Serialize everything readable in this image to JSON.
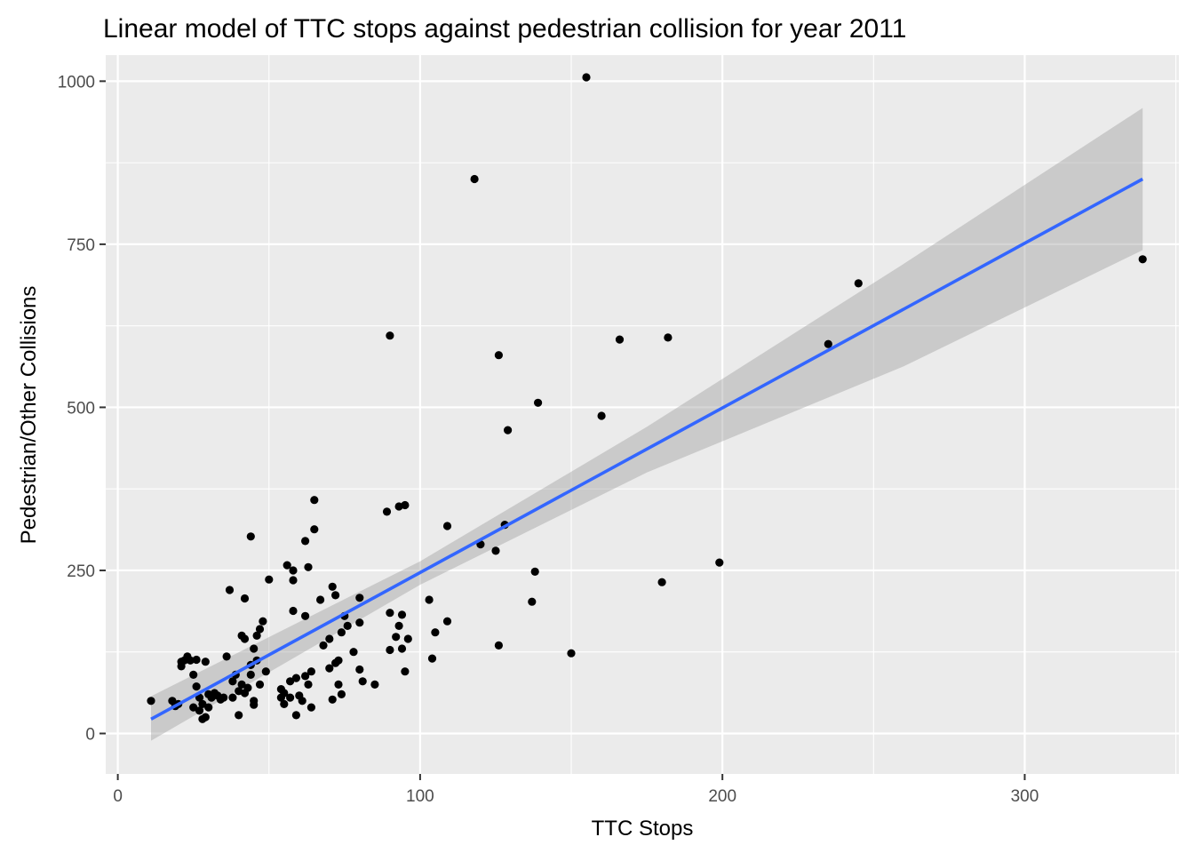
{
  "chart_data": {
    "type": "scatter",
    "title": "Linear model of TTC stops against pedestrian collision for year 2011",
    "xlabel": "TTC Stops",
    "ylabel": "Pedestrian/Other Collisions",
    "xlim": [
      -4,
      351
    ],
    "ylim": [
      -62,
      1040
    ],
    "x_ticks": [
      0,
      100,
      200,
      300
    ],
    "x_tick_labels": [
      "0",
      "100",
      "200",
      "300"
    ],
    "y_ticks": [
      0,
      250,
      500,
      750,
      1000
    ],
    "y_tick_labels": [
      "0",
      "250",
      "500",
      "750",
      "1000"
    ],
    "grid": true,
    "legend": "none",
    "colors": {
      "panel": "#ebebeb",
      "grid": "#ffffff",
      "point": "#000000",
      "fit_line": "#3366ff",
      "ribbon": "#bdbdbd"
    },
    "fit": {
      "method": "lm",
      "x": [
        11,
        339
      ],
      "y": [
        22,
        850
      ],
      "ribbon_lower": [
        [
          11,
          -11
        ],
        [
          100,
          228
        ],
        [
          175,
          400
        ],
        [
          260,
          563
        ],
        [
          339,
          741
        ]
      ],
      "ribbon_upper": [
        [
          11,
          57
        ],
        [
          100,
          264
        ],
        [
          175,
          470
        ],
        [
          260,
          720
        ],
        [
          339,
          959
        ]
      ]
    },
    "points": [
      [
        11,
        50
      ],
      [
        18,
        50
      ],
      [
        19,
        42
      ],
      [
        20,
        45
      ],
      [
        21,
        110
      ],
      [
        21,
        103
      ],
      [
        22,
        112
      ],
      [
        23,
        118
      ],
      [
        24,
        112
      ],
      [
        25,
        90
      ],
      [
        25,
        40
      ],
      [
        26,
        113
      ],
      [
        26,
        72
      ],
      [
        27,
        35
      ],
      [
        27,
        55
      ],
      [
        28,
        22
      ],
      [
        28,
        45
      ],
      [
        29,
        25
      ],
      [
        29,
        110
      ],
      [
        30,
        60
      ],
      [
        30,
        40
      ],
      [
        31,
        55
      ],
      [
        32,
        62
      ],
      [
        33,
        58
      ],
      [
        34,
        52
      ],
      [
        35,
        55
      ],
      [
        36,
        118
      ],
      [
        37,
        220
      ],
      [
        38,
        55
      ],
      [
        38,
        80
      ],
      [
        39,
        90
      ],
      [
        40,
        28
      ],
      [
        40,
        65
      ],
      [
        41,
        150
      ],
      [
        41,
        75
      ],
      [
        42,
        145
      ],
      [
        42,
        62
      ],
      [
        42,
        207
      ],
      [
        43,
        70
      ],
      [
        44,
        105
      ],
      [
        44,
        302
      ],
      [
        44,
        90
      ],
      [
        45,
        130
      ],
      [
        45,
        50
      ],
      [
        45,
        44
      ],
      [
        46,
        150
      ],
      [
        46,
        112
      ],
      [
        47,
        75
      ],
      [
        47,
        160
      ],
      [
        48,
        172
      ],
      [
        49,
        95
      ],
      [
        50,
        236
      ],
      [
        54,
        68
      ],
      [
        54,
        55
      ],
      [
        55,
        45
      ],
      [
        55,
        62
      ],
      [
        56,
        258
      ],
      [
        57,
        80
      ],
      [
        57,
        55
      ],
      [
        58,
        235
      ],
      [
        58,
        250
      ],
      [
        58,
        188
      ],
      [
        59,
        28
      ],
      [
        59,
        85
      ],
      [
        60,
        58
      ],
      [
        61,
        50
      ],
      [
        62,
        295
      ],
      [
        62,
        180
      ],
      [
        62,
        88
      ],
      [
        63,
        255
      ],
      [
        63,
        75
      ],
      [
        64,
        95
      ],
      [
        64,
        40
      ],
      [
        65,
        313
      ],
      [
        65,
        358
      ],
      [
        67,
        205
      ],
      [
        68,
        135
      ],
      [
        70,
        145
      ],
      [
        70,
        100
      ],
      [
        71,
        225
      ],
      [
        71,
        52
      ],
      [
        72,
        212
      ],
      [
        72,
        108
      ],
      [
        73,
        112
      ],
      [
        73,
        75
      ],
      [
        74,
        155
      ],
      [
        74,
        60
      ],
      [
        75,
        180
      ],
      [
        76,
        165
      ],
      [
        78,
        125
      ],
      [
        80,
        208
      ],
      [
        80,
        170
      ],
      [
        80,
        98
      ],
      [
        81,
        80
      ],
      [
        85,
        75
      ],
      [
        89,
        340
      ],
      [
        90,
        185
      ],
      [
        90,
        128
      ],
      [
        90,
        610
      ],
      [
        92,
        148
      ],
      [
        93,
        348
      ],
      [
        93,
        165
      ],
      [
        94,
        182
      ],
      [
        94,
        130
      ],
      [
        95,
        350
      ],
      [
        95,
        95
      ],
      [
        96,
        145
      ],
      [
        103,
        205
      ],
      [
        104,
        115
      ],
      [
        105,
        155
      ],
      [
        109,
        318
      ],
      [
        109,
        172
      ],
      [
        118,
        850
      ],
      [
        120,
        290
      ],
      [
        125,
        280
      ],
      [
        126,
        580
      ],
      [
        126,
        135
      ],
      [
        128,
        320
      ],
      [
        129,
        465
      ],
      [
        137,
        202
      ],
      [
        138,
        248
      ],
      [
        139,
        507
      ],
      [
        150,
        123
      ],
      [
        155,
        1006
      ],
      [
        160,
        487
      ],
      [
        166,
        604
      ],
      [
        180,
        232
      ],
      [
        182,
        607
      ],
      [
        199,
        262
      ],
      [
        235,
        597
      ],
      [
        245,
        690
      ],
      [
        339,
        727
      ]
    ]
  }
}
